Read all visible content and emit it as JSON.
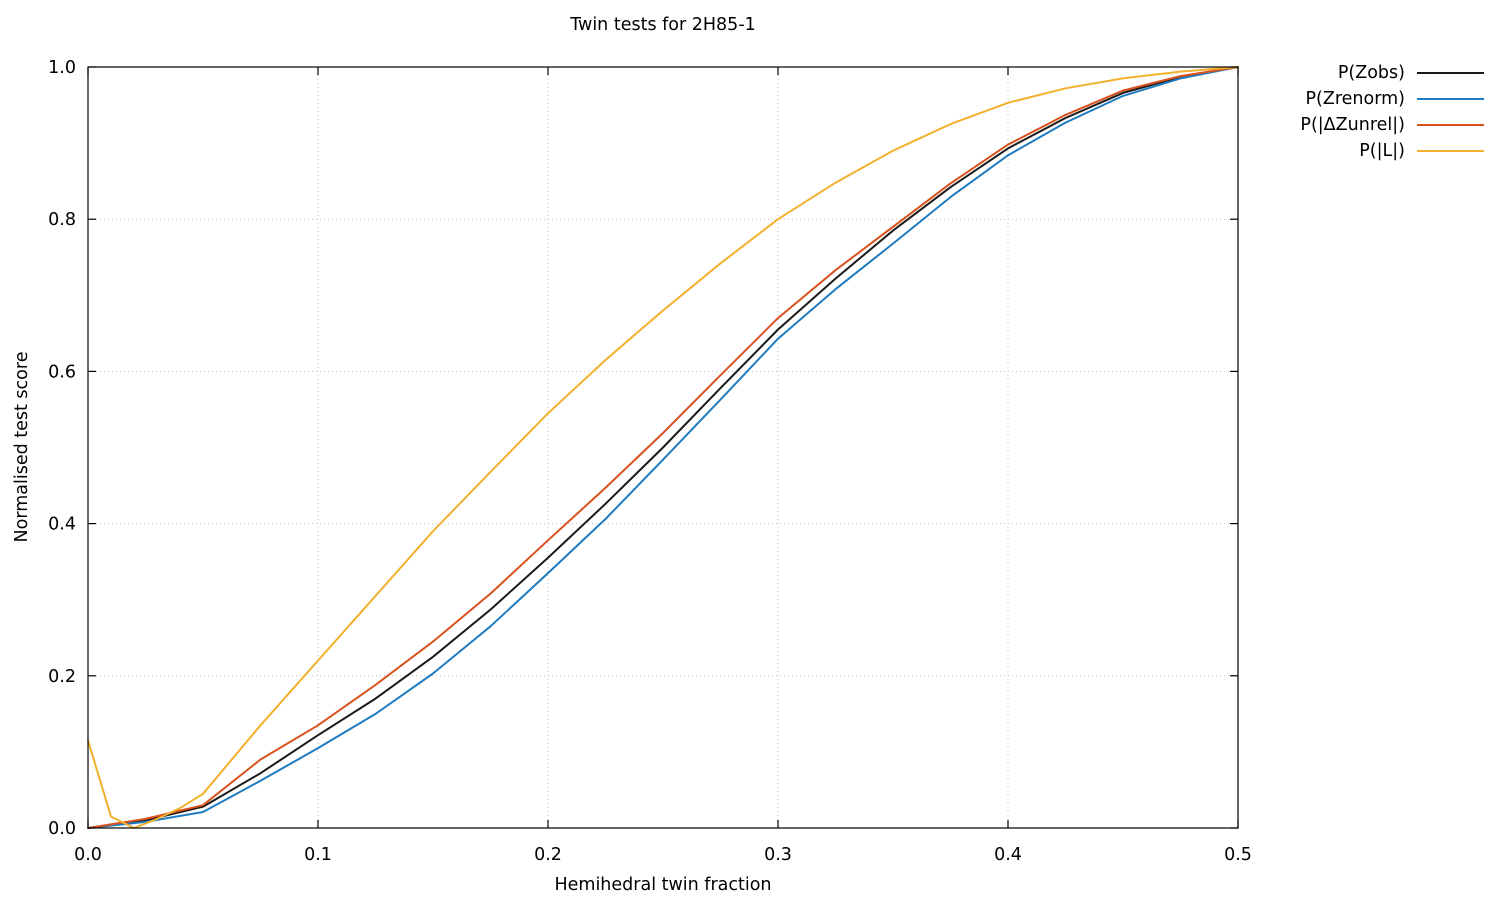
{
  "page": {
    "background": "#ffffff"
  },
  "chart_data": {
    "type": "line",
    "title": "Twin tests for 2H85-1",
    "xlabel": "Hemihedral twin fraction",
    "ylabel": "Normalised test score",
    "xlim": [
      0.0,
      0.5
    ],
    "ylim": [
      0.0,
      1.0
    ],
    "x_ticks": [
      0.0,
      0.1,
      0.2,
      0.3,
      0.4,
      0.5
    ],
    "y_ticks": [
      0.0,
      0.2,
      0.4,
      0.6,
      0.8,
      1.0
    ],
    "grid": "dotted",
    "grid_color": "#c3c3c3",
    "axis_color": "#000000",
    "legend_position": "outside-right-top",
    "series": [
      {
        "name": "P(Zobs)",
        "color": "#1a1a1a",
        "x": [
          0,
          0.025,
          0.05,
          0.075,
          0.1,
          0.125,
          0.15,
          0.175,
          0.2,
          0.225,
          0.25,
          0.275,
          0.3,
          0.325,
          0.35,
          0.375,
          0.4,
          0.425,
          0.45,
          0.475,
          0.5
        ],
        "y": [
          0,
          0.01,
          0.028,
          0.072,
          0.122,
          0.17,
          0.225,
          0.287,
          0.355,
          0.426,
          0.5,
          0.578,
          0.655,
          0.722,
          0.785,
          0.842,
          0.893,
          0.933,
          0.966,
          0.987,
          1.0
        ]
      },
      {
        "name": "P(Zrenorm)",
        "color": "#1f7bc0",
        "x": [
          0,
          0.025,
          0.05,
          0.075,
          0.1,
          0.125,
          0.15,
          0.175,
          0.2,
          0.225,
          0.25,
          0.275,
          0.3,
          0.325,
          0.35,
          0.375,
          0.4,
          0.425,
          0.45,
          0.475,
          0.5
        ],
        "y": [
          0,
          0.008,
          0.021,
          0.062,
          0.105,
          0.15,
          0.203,
          0.265,
          0.335,
          0.406,
          0.484,
          0.563,
          0.643,
          0.708,
          0.768,
          0.829,
          0.884,
          0.927,
          0.962,
          0.985,
          1.0
        ]
      },
      {
        "name": "P(|ΔZunrel|)",
        "color": "#d9521e",
        "x": [
          0,
          0.025,
          0.05,
          0.075,
          0.1,
          0.125,
          0.15,
          0.175,
          0.2,
          0.225,
          0.25,
          0.275,
          0.3,
          0.325,
          0.35,
          0.375,
          0.4,
          0.425,
          0.45,
          0.475,
          0.5
        ],
        "y": [
          0,
          0.012,
          0.03,
          0.09,
          0.135,
          0.188,
          0.245,
          0.308,
          0.378,
          0.447,
          0.519,
          0.595,
          0.67,
          0.733,
          0.79,
          0.847,
          0.898,
          0.937,
          0.969,
          0.988,
          1.0
        ]
      },
      {
        "name": "P(|L|)",
        "color": "#f2b02d",
        "x": [
          0,
          0.01,
          0.02,
          0.03,
          0.04,
          0.05,
          0.075,
          0.1,
          0.125,
          0.15,
          0.175,
          0.2,
          0.225,
          0.25,
          0.275,
          0.3,
          0.325,
          0.35,
          0.375,
          0.4,
          0.425,
          0.45,
          0.475,
          0.5
        ],
        "y": [
          0.115,
          0.015,
          0.0,
          0.012,
          0.026,
          0.045,
          0.135,
          0.22,
          0.305,
          0.39,
          0.468,
          0.545,
          0.615,
          0.68,
          0.742,
          0.8,
          0.848,
          0.89,
          0.925,
          0.953,
          0.972,
          0.985,
          0.994,
          1.0
        ]
      }
    ]
  }
}
